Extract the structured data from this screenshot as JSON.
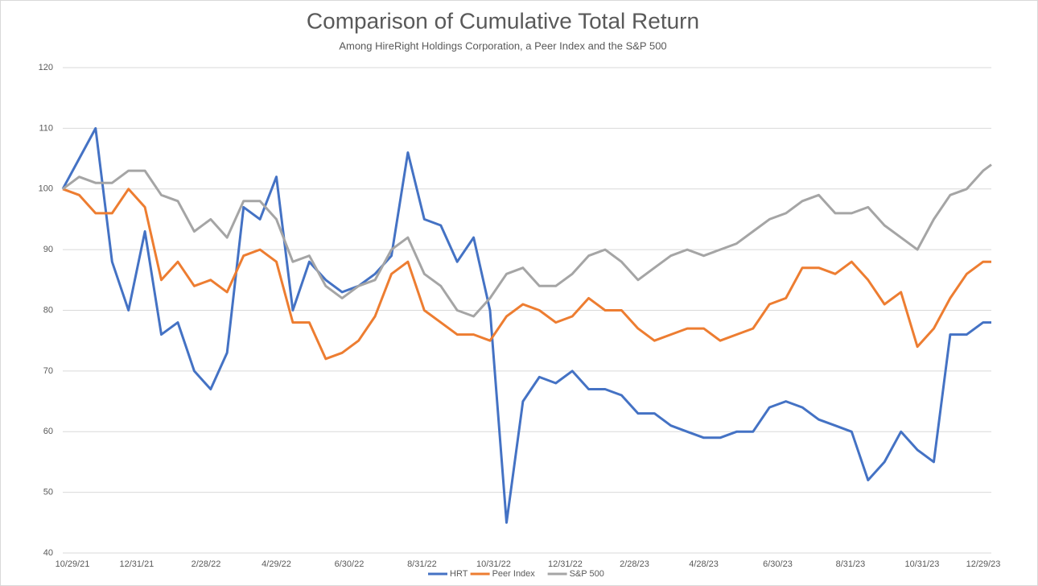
{
  "chart_data": {
    "type": "line",
    "title": "Comparison of Cumulative Total Return",
    "subtitle": "Among HireRight Holdings Corporation, a Peer Index and the S&P 500",
    "x": [
      "10/29/21",
      "11/12/21",
      "11/26/21",
      "12/10/21",
      "12/24/21",
      "1/7/22",
      "1/21/22",
      "2/4/22",
      "2/18/22",
      "3/4/22",
      "3/18/22",
      "4/1/22",
      "4/15/22",
      "4/29/22",
      "5/13/22",
      "5/27/22",
      "6/10/22",
      "6/24/22",
      "7/8/22",
      "7/22/22",
      "8/5/22",
      "8/19/22",
      "9/2/22",
      "9/16/22",
      "9/30/22",
      "10/14/22",
      "10/28/22",
      "11/11/22",
      "11/25/22",
      "12/9/22",
      "12/23/22",
      "1/6/23",
      "1/20/23",
      "2/3/23",
      "2/17/23",
      "3/3/23",
      "3/17/23",
      "3/31/23",
      "4/14/23",
      "4/28/23",
      "5/12/23",
      "5/26/23",
      "6/9/23",
      "6/23/23",
      "7/7/23",
      "7/21/23",
      "8/4/23",
      "8/18/23",
      "9/1/23",
      "9/15/23",
      "9/29/23",
      "10/13/23",
      "10/27/23",
      "11/10/23",
      "11/24/23",
      "12/8/23",
      "12/22/23",
      "12/29/23"
    ],
    "xlim": [
      "10/29/21",
      "12/29/23"
    ],
    "xticks": [
      "10/29/21",
      "12/31/21",
      "2/28/22",
      "4/29/22",
      "6/30/22",
      "8/31/22",
      "10/31/22",
      "12/31/22",
      "2/28/23",
      "4/28/23",
      "6/30/23",
      "8/31/23",
      "10/31/23",
      "12/29/23"
    ],
    "ylim": [
      40,
      120
    ],
    "yticks": [
      40,
      50,
      60,
      70,
      80,
      90,
      100,
      110,
      120
    ],
    "grid": true,
    "legend": "bottom",
    "series": [
      {
        "name": "HRT",
        "color": "#4472c4",
        "values": [
          100,
          105,
          110,
          88,
          80,
          93,
          76,
          78,
          70,
          67,
          73,
          97,
          95,
          102,
          80,
          88,
          85,
          83,
          84,
          86,
          89,
          106,
          95,
          94,
          88,
          92,
          80,
          45,
          65,
          69,
          68,
          70,
          67,
          67,
          66,
          63,
          63,
          61,
          60,
          59,
          59,
          60,
          60,
          64,
          65,
          64,
          62,
          61,
          60,
          52,
          55,
          60,
          57,
          55,
          76,
          76,
          78,
          78
        ]
      },
      {
        "name": "Peer Index",
        "color": "#ed7d31",
        "values": [
          100,
          99,
          96,
          96,
          100,
          97,
          85,
          88,
          84,
          85,
          83,
          89,
          90,
          88,
          78,
          78,
          72,
          73,
          75,
          79,
          86,
          88,
          80,
          78,
          76,
          76,
          75,
          79,
          81,
          80,
          78,
          79,
          82,
          80,
          80,
          77,
          75,
          76,
          77,
          77,
          75,
          76,
          77,
          81,
          82,
          87,
          87,
          86,
          88,
          85,
          81,
          83,
          74,
          77,
          82,
          86,
          88,
          88
        ]
      },
      {
        "name": "S&P 500",
        "color": "#a5a5a5",
        "values": [
          100,
          102,
          101,
          101,
          103,
          103,
          99,
          98,
          93,
          95,
          92,
          98,
          98,
          95,
          88,
          89,
          84,
          82,
          84,
          85,
          90,
          92,
          86,
          84,
          80,
          79,
          82,
          86,
          87,
          84,
          84,
          86,
          89,
          90,
          88,
          85,
          87,
          89,
          90,
          89,
          90,
          91,
          93,
          95,
          96,
          98,
          99,
          96,
          96,
          97,
          94,
          92,
          90,
          95,
          99,
          100,
          103,
          104
        ]
      }
    ]
  }
}
